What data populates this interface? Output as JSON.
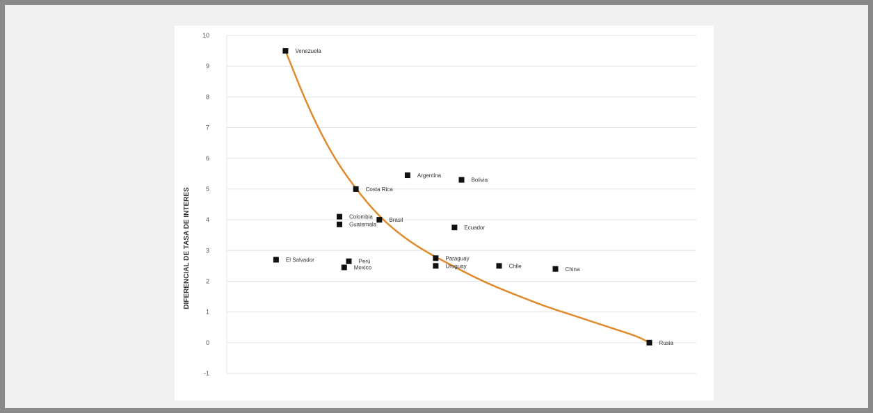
{
  "chart_data": {
    "type": "scatter",
    "title": "",
    "xlabel": "",
    "ylabel": "DIFERENCIAL DE TASA DE INTERES",
    "ylim": [
      -1,
      10
    ],
    "xlim": [
      0,
      20
    ],
    "yticks": [
      {
        "value": 10,
        "label": "10"
      },
      {
        "value": 9,
        "label": "9"
      },
      {
        "value": 8,
        "label": "8"
      },
      {
        "value": 7,
        "label": "7"
      },
      {
        "value": 6,
        "label": "6"
      },
      {
        "value": 5,
        "label": "5"
      },
      {
        "value": 4,
        "label": "4"
      },
      {
        "value": 3,
        "label": "3"
      },
      {
        "value": 2,
        "label": "2"
      },
      {
        "value": 1,
        "label": "1"
      },
      {
        "value": 0,
        "label": "0"
      },
      {
        "value": -1,
        "label": "-1"
      }
    ],
    "grid": true,
    "legend": "none",
    "points": [
      {
        "x": 2.5,
        "y": 9.5,
        "label": "Venezuela"
      },
      {
        "x": 2.1,
        "y": 2.7,
        "label": "El Salvador"
      },
      {
        "x": 4.8,
        "y": 4.1,
        "label": "Colombia"
      },
      {
        "x": 4.8,
        "y": 3.85,
        "label": "Guatemala"
      },
      {
        "x": 5.0,
        "y": 2.45,
        "label": "Mexico"
      },
      {
        "x": 5.2,
        "y": 2.65,
        "label": "Perú"
      },
      {
        "x": 5.5,
        "y": 5.0,
        "label": "Costa Rica"
      },
      {
        "x": 6.5,
        "y": 4.0,
        "label": "Brasil"
      },
      {
        "x": 7.7,
        "y": 5.45,
        "label": "Argentina"
      },
      {
        "x": 8.9,
        "y": 2.75,
        "label": "Paraguay"
      },
      {
        "x": 8.9,
        "y": 2.5,
        "label": "Uruguay"
      },
      {
        "x": 9.7,
        "y": 3.75,
        "label": "Ecuador"
      },
      {
        "x": 10.0,
        "y": 5.3,
        "label": "Bolivia"
      },
      {
        "x": 11.6,
        "y": 2.5,
        "label": "Chile"
      },
      {
        "x": 14.0,
        "y": 2.4,
        "label": "China"
      },
      {
        "x": 18.0,
        "y": 0.0,
        "label": "Rusia"
      }
    ],
    "trendline": {
      "type": "exponential",
      "color": "#e08a2e",
      "points": [
        [
          2.5,
          9.5
        ],
        [
          3.5,
          7.6
        ],
        [
          4.5,
          6.1
        ],
        [
          5.5,
          5.0
        ],
        [
          6.5,
          4.1
        ],
        [
          7.5,
          3.45
        ],
        [
          8.5,
          2.95
        ],
        [
          9.5,
          2.55
        ],
        [
          10.5,
          2.15
        ],
        [
          11.5,
          1.8
        ],
        [
          12.5,
          1.5
        ],
        [
          13.5,
          1.2
        ],
        [
          14.5,
          0.95
        ],
        [
          15.5,
          0.7
        ],
        [
          16.5,
          0.45
        ],
        [
          17.5,
          0.2
        ],
        [
          18.0,
          0.0
        ]
      ]
    },
    "colors": {
      "points": "#111111",
      "trend": "#e08a2e",
      "grid": "#e2e2e2"
    }
  }
}
